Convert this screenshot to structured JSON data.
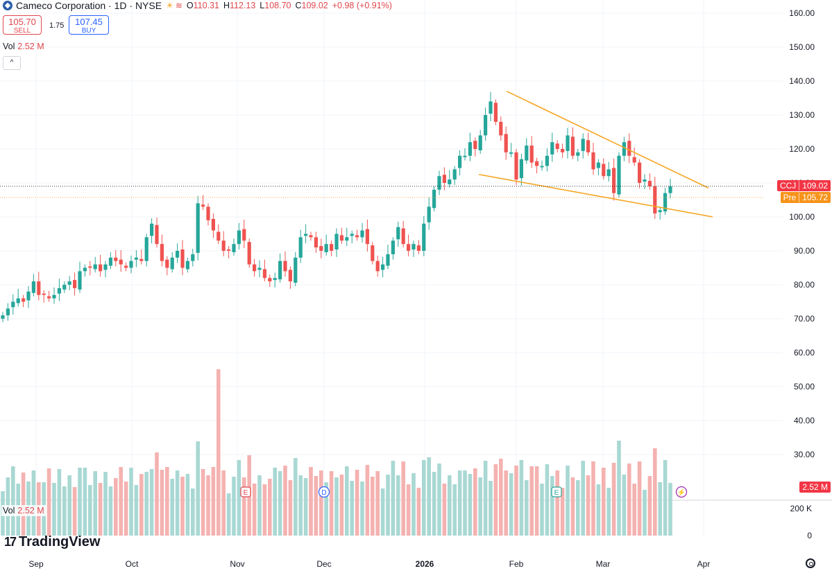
{
  "header": {
    "symbol": "Cameco Corporation · 1D · NYSE",
    "o_label": "O",
    "o": "110.31",
    "h_label": "H",
    "h": "112.13",
    "l_label": "L",
    "l": "108.70",
    "c_label": "C",
    "c": "109.02",
    "change": "+0.98 (+0.91%)"
  },
  "trade": {
    "sell_price": "105.70",
    "sell_label": "SELL",
    "spread": "1.75",
    "buy_price": "107.45",
    "buy_label": "BUY"
  },
  "vol_top": {
    "label": "Vol",
    "value": "2.52 M"
  },
  "vol_legend": {
    "label": "Vol",
    "value": "2.52 M"
  },
  "price_labels": {
    "ccj_tag": "CCJ",
    "ccj_value": "109.02",
    "pre_tag": "Pre",
    "pre_value": "105.72",
    "vol_value": "2.52 M"
  },
  "brand": "TradingView",
  "colors": {
    "up": "#26a69a",
    "down": "#ef5350",
    "trendline": "#f5a623",
    "vol_up": "#a9d8d3",
    "vol_down": "#f4b2b0"
  },
  "chart_data": {
    "type": "candlestick",
    "title": "Cameco Corporation · 1D · NYSE",
    "xlabel": "",
    "ylabel": "",
    "y_ticks": [
      "160.00",
      "150.00",
      "140.00",
      "130.00",
      "120.00",
      "110.00",
      "100.00",
      "90.00",
      "80.00",
      "70.00",
      "60.00",
      "50.00",
      "40.00",
      "30.00"
    ],
    "ylim": [
      26,
      162
    ],
    "x_ticks": [
      "Sep",
      "Oct",
      "Nov",
      "Dec",
      "2026",
      "Feb",
      "Mar",
      "Apr"
    ],
    "volume_ticks": [
      "200 K",
      "0"
    ],
    "grid": true,
    "closes": [
      71,
      73,
      75,
      76,
      75,
      78,
      81,
      77,
      77,
      76,
      77,
      79,
      80,
      81,
      79,
      84,
      85,
      85,
      86,
      84,
      86,
      88,
      87,
      86,
      85,
      87,
      88,
      87,
      94,
      98,
      92,
      87,
      85,
      88,
      90,
      85,
      87,
      89,
      104,
      103,
      99,
      96,
      93,
      90,
      90,
      92,
      96,
      93,
      86,
      84,
      85,
      82,
      81,
      82,
      87,
      84,
      81,
      88,
      94,
      95,
      94,
      91,
      90,
      92,
      90,
      95,
      93,
      94,
      95,
      94,
      96,
      92,
      87,
      84,
      86,
      89,
      93,
      97,
      92,
      90,
      92,
      90,
      98,
      103,
      108,
      112,
      110,
      111,
      114,
      118,
      118,
      122,
      120,
      124,
      130,
      134,
      128,
      124,
      119,
      119,
      111,
      117,
      121,
      116,
      115,
      115,
      118,
      122,
      120,
      119,
      124,
      118,
      119,
      123,
      119,
      114,
      116,
      112,
      114,
      107,
      118,
      122,
      118,
      116,
      110,
      111,
      109,
      101,
      102,
      107,
      109
    ],
    "trendlines": [
      {
        "from": [
          "Jan 21",
          137
        ],
        "to": [
          "Mar 27",
          108.5
        ]
      },
      {
        "from": [
          "Jan 19",
          112.5
        ],
        "to": [
          "Mar 28",
          100
        ]
      }
    ],
    "events": [
      "E",
      "D",
      "E",
      "⚡"
    ],
    "last_close": 109.02,
    "premarket": 105.72,
    "last_volume": "2.52 M"
  }
}
